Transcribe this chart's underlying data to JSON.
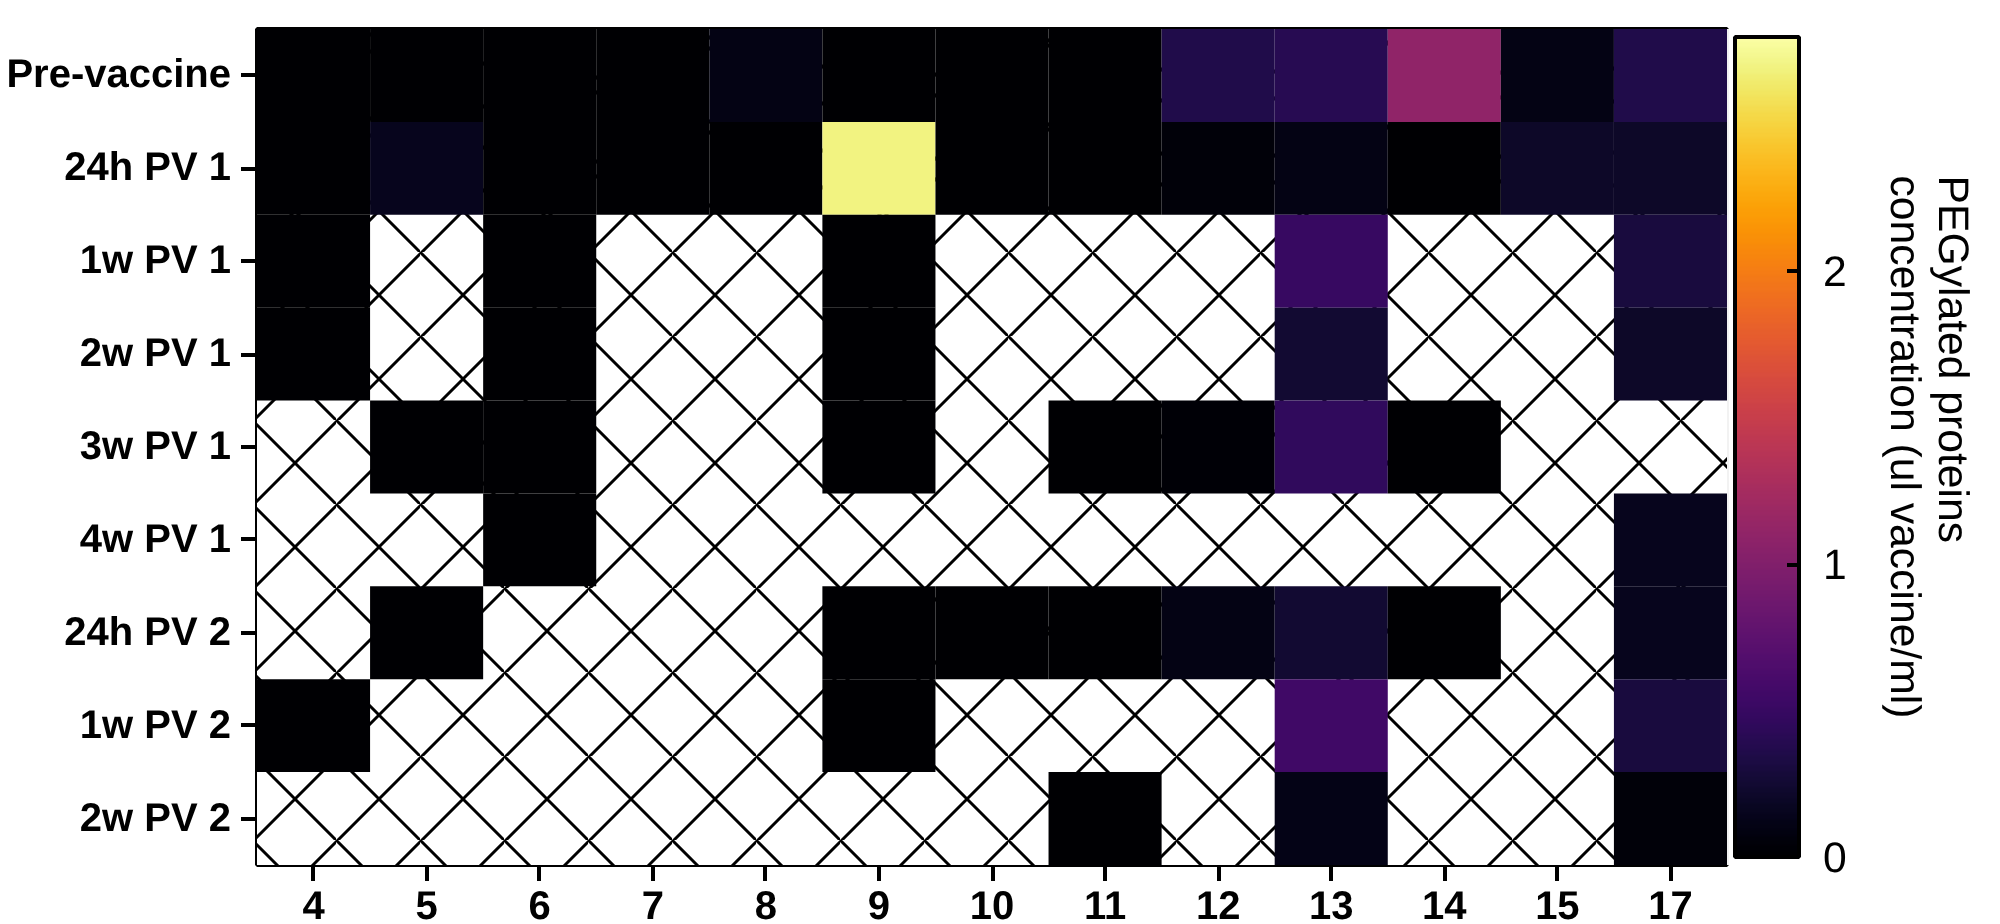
{
  "chart_data": {
    "type": "heatmap",
    "categories": [
      "4",
      "5",
      "6",
      "7",
      "8",
      "9",
      "10",
      "11",
      "12",
      "13",
      "14",
      "15",
      "17"
    ],
    "y_categories": [
      "Pre-vaccine",
      "24h PV 1",
      "1w PV 1",
      "2w PV 1",
      "3w PV 1",
      "4w PV 1",
      "24h PV 2",
      "1w PV 2",
      "2w PV 2"
    ],
    "cells": [
      [
        0,
        0,
        0,
        0,
        0.1,
        0,
        0,
        0,
        0.35,
        0.4,
        1.1,
        0.1,
        0.35
      ],
      [
        0,
        0.15,
        0,
        0,
        0,
        2.7,
        0,
        0,
        0.05,
        0.1,
        0,
        0.2,
        0.2
      ],
      [
        0,
        null,
        0,
        null,
        null,
        0,
        null,
        null,
        null,
        0.5,
        null,
        null,
        0.3
      ],
      [
        0,
        null,
        0,
        null,
        null,
        0,
        null,
        null,
        null,
        0.25,
        null,
        null,
        0.2
      ],
      [
        null,
        0,
        0,
        null,
        null,
        0,
        null,
        0,
        0.03,
        0.45,
        0,
        null,
        null
      ],
      [
        null,
        null,
        0,
        null,
        null,
        null,
        null,
        null,
        null,
        null,
        null,
        null,
        0.15
      ],
      [
        null,
        0,
        null,
        null,
        null,
        0,
        0,
        0,
        0.1,
        0.25,
        0,
        null,
        0.15
      ],
      [
        0,
        null,
        null,
        null,
        null,
        0,
        null,
        null,
        null,
        0.55,
        null,
        null,
        0.3
      ],
      [
        null,
        null,
        null,
        null,
        null,
        null,
        null,
        0,
        null,
        0.12,
        null,
        null,
        0.05
      ]
    ],
    "clim": [
      0,
      2.8
    ],
    "cticks": [
      0,
      1,
      2
    ],
    "clabel": "PEGylated proteins\nconcentration (ul vaccine/ml)"
  }
}
